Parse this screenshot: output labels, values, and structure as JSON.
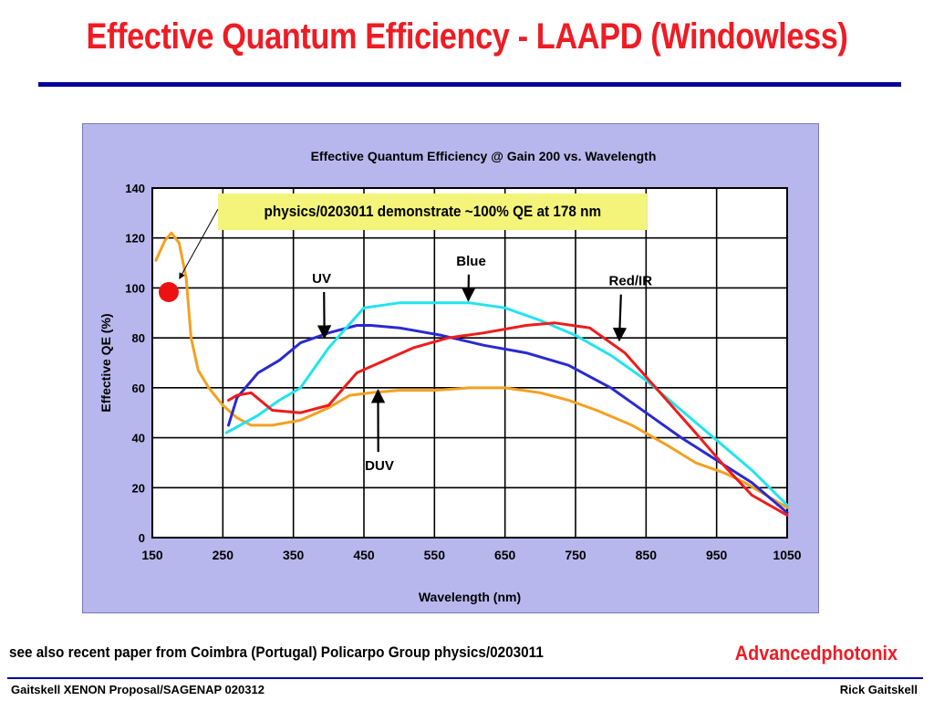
{
  "slide": {
    "title": "Effective Quantum Efficiency - LAAPD (Windowless)",
    "note": "physics/0203011 demonstrate ~100% QE at 178 nm",
    "footnote": "see also recent paper from Coimbra (Portugal) Policarpo Group physics/0203011",
    "brand": "Advancedphotonix",
    "footer_left": "Gaitskell  XENON Proposal/SAGENAP 020312",
    "footer_right": "Rick Gaitskell"
  },
  "colors": {
    "title": "#ee1c24",
    "rule": "#000099",
    "panel": "#b7b7ed",
    "note_bg": "#f4f47a",
    "marker": "#ee1111"
  },
  "chart_data": {
    "type": "line",
    "title": "Effective Quantum Efficiency @ Gain 200 vs. Wavelength",
    "xlabel": "Wavelength  (nm)",
    "ylabel": "Effective QE (%)",
    "xlim": [
      150,
      1050
    ],
    "ylim": [
      0,
      140
    ],
    "xticks": [
      150,
      250,
      350,
      450,
      550,
      650,
      750,
      850,
      950,
      1050
    ],
    "yticks": [
      0,
      20,
      40,
      60,
      80,
      100,
      120,
      140
    ],
    "grid": true,
    "series": [
      {
        "name": "DUV",
        "color": "#f5a020",
        "x": [
          155,
          168,
          177,
          188,
          198,
          205,
          215,
          230,
          250,
          270,
          290,
          320,
          360,
          400,
          430,
          460,
          500,
          550,
          600,
          650,
          700,
          740,
          780,
          830,
          880,
          920,
          960,
          990,
          1020,
          1050
        ],
        "y": [
          111,
          119,
          122,
          118,
          104,
          80,
          67,
          60,
          53,
          48,
          45,
          45,
          47,
          52,
          57,
          58,
          59,
          59,
          60,
          60,
          58,
          55,
          51,
          45,
          37,
          30,
          26,
          22,
          17,
          12
        ]
      },
      {
        "name": "UV",
        "color": "#2a2ad0",
        "x": [
          258,
          270,
          300,
          330,
          360,
          400,
          440,
          460,
          500,
          560,
          620,
          680,
          740,
          800,
          850,
          900,
          950,
          1000,
          1050
        ],
        "y": [
          45,
          56,
          66,
          71,
          78,
          82,
          85,
          85,
          84,
          81,
          77,
          74,
          69,
          60,
          50,
          40,
          31,
          22,
          10
        ]
      },
      {
        "name": "Blue",
        "color": "#22e3ee",
        "x": [
          255,
          300,
          330,
          360,
          400,
          450,
          500,
          560,
          600,
          650,
          700,
          750,
          800,
          850,
          900,
          950,
          1000,
          1050
        ],
        "y": [
          42,
          49,
          55,
          60,
          76,
          92,
          94,
          94,
          94,
          92,
          87,
          81,
          73,
          63,
          51,
          39,
          27,
          13
        ]
      },
      {
        "name": "Red/IR",
        "color": "#ee1c1c",
        "x": [
          258,
          270,
          290,
          320,
          360,
          400,
          440,
          480,
          520,
          570,
          620,
          680,
          720,
          770,
          820,
          870,
          920,
          960,
          1000,
          1050
        ],
        "y": [
          55,
          57,
          58,
          51,
          50,
          53,
          66,
          71,
          76,
          80,
          82,
          85,
          86,
          84,
          74,
          58,
          42,
          29,
          17,
          9
        ]
      }
    ],
    "annotations": [
      {
        "text": "UV",
        "x": 390,
        "y": 102,
        "arrow_to": [
          394,
          80
        ]
      },
      {
        "text": "Blue",
        "x": 602,
        "y": 109,
        "arrow_to": [
          598,
          95
        ]
      },
      {
        "text": "Red/IR",
        "x": 828,
        "y": 101,
        "arrow_to": [
          812,
          79
        ]
      },
      {
        "text": "DUV",
        "x": 472,
        "y": 27,
        "arrow_to": [
          470,
          59
        ]
      }
    ],
    "highlight": {
      "x": 178,
      "y": 100
    }
  }
}
